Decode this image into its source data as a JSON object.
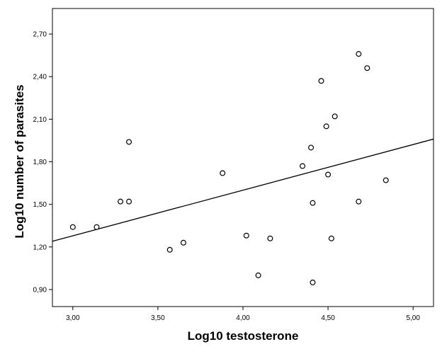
{
  "chart_data": {
    "type": "scatter",
    "title": "",
    "xlabel": "Log10 testosterone",
    "ylabel": "Log10 number of parasites",
    "xlim": [
      2.88,
      5.12
    ],
    "ylim": [
      0.78,
      2.88
    ],
    "x_ticks": [
      3.0,
      3.5,
      4.0,
      4.5,
      5.0
    ],
    "x_tick_labels": [
      "3,00",
      "3,50",
      "4,00",
      "4,50",
      "5,00"
    ],
    "y_ticks": [
      0.9,
      1.2,
      1.5,
      1.8,
      2.1,
      2.4,
      2.7
    ],
    "y_tick_labels": [
      "0,90",
      "1,20",
      "1,50",
      "1,80",
      "2,10",
      "2,40",
      "2,70"
    ],
    "grid": false,
    "points": [
      {
        "x": 3.0,
        "y": 1.34
      },
      {
        "x": 3.14,
        "y": 1.34
      },
      {
        "x": 3.28,
        "y": 1.52
      },
      {
        "x": 3.33,
        "y": 1.52
      },
      {
        "x": 3.33,
        "y": 1.94
      },
      {
        "x": 3.57,
        "y": 1.18
      },
      {
        "x": 3.65,
        "y": 1.23
      },
      {
        "x": 3.88,
        "y": 1.72
      },
      {
        "x": 4.02,
        "y": 1.28
      },
      {
        "x": 4.09,
        "y": 1.0
      },
      {
        "x": 4.16,
        "y": 1.26
      },
      {
        "x": 4.35,
        "y": 1.77
      },
      {
        "x": 4.4,
        "y": 1.9
      },
      {
        "x": 4.41,
        "y": 1.51
      },
      {
        "x": 4.41,
        "y": 0.95
      },
      {
        "x": 4.46,
        "y": 2.37
      },
      {
        "x": 4.49,
        "y": 2.05
      },
      {
        "x": 4.5,
        "y": 1.71
      },
      {
        "x": 4.52,
        "y": 1.26
      },
      {
        "x": 4.54,
        "y": 2.12
      },
      {
        "x": 4.68,
        "y": 2.56
      },
      {
        "x": 4.68,
        "y": 1.52
      },
      {
        "x": 4.73,
        "y": 2.46
      },
      {
        "x": 4.84,
        "y": 1.67
      }
    ],
    "fit_line": {
      "x": [
        2.88,
        5.12
      ],
      "y": [
        1.24,
        1.96
      ]
    }
  }
}
